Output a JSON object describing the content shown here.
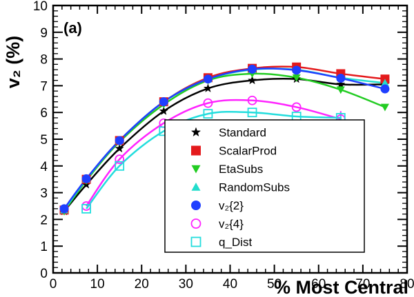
{
  "chart_data": {
    "type": "scatter",
    "panel_label": "(a)",
    "xlabel": "% Most Central",
    "ylabel": "v₂ (%)",
    "xlim": [
      0,
      80
    ],
    "ylim": [
      0,
      10
    ],
    "x_ticks": [
      0,
      10,
      20,
      30,
      40,
      50,
      60,
      70,
      80
    ],
    "y_ticks": [
      0,
      1,
      2,
      3,
      4,
      5,
      6,
      7,
      8,
      9,
      10
    ],
    "grid": false,
    "legend_position": "lower-right",
    "series": [
      {
        "name": "Standard",
        "marker": "star",
        "color": "#000000",
        "fill": "#000000",
        "x": [
          2.5,
          7.5,
          15,
          25,
          35,
          45,
          55,
          65,
          75
        ],
        "y": [
          2.3,
          3.3,
          4.65,
          6.05,
          6.9,
          7.2,
          7.25,
          7.05,
          7.05
        ],
        "yerr": [
          0,
          0,
          0,
          0,
          0,
          0,
          0,
          0,
          0
        ]
      },
      {
        "name": "ScalarProd",
        "marker": "square",
        "color": "#e41a1c",
        "fill": "#e41a1c",
        "x": [
          2.5,
          7.5,
          15,
          25,
          35,
          45,
          55,
          65,
          75
        ],
        "y": [
          2.35,
          3.5,
          4.95,
          6.4,
          7.3,
          7.65,
          7.7,
          7.45,
          7.25
        ],
        "yerr": [
          0,
          0,
          0,
          0,
          0,
          0,
          0,
          0,
          0
        ]
      },
      {
        "name": "EtaSubs",
        "marker": "triangle-down",
        "color": "#22cc22",
        "fill": "#22cc22",
        "x": [
          2.5,
          7.5,
          15,
          25,
          35,
          45,
          55,
          65,
          75
        ],
        "y": [
          2.3,
          3.45,
          4.9,
          6.3,
          7.2,
          7.45,
          7.3,
          6.85,
          6.2
        ],
        "yerr": [
          0,
          0,
          0,
          0,
          0,
          0,
          0,
          0,
          0
        ]
      },
      {
        "name": "RandomSubs",
        "marker": "triangle-up",
        "color": "#22ddcc",
        "fill": "#22ddcc",
        "x": [
          2.5,
          7.5,
          15,
          25,
          35,
          45,
          55,
          65,
          75
        ],
        "y": [
          2.35,
          3.5,
          4.95,
          6.4,
          7.25,
          7.6,
          7.6,
          7.3,
          7.1
        ],
        "yerr": [
          0,
          0,
          0,
          0,
          0,
          0,
          0,
          0,
          0
        ]
      },
      {
        "name": "v₂{2}",
        "marker": "circle",
        "color": "#1f3fff",
        "fill": "#1f3fff",
        "x": [
          2.5,
          7.5,
          15,
          25,
          35,
          45,
          55,
          65,
          75
        ],
        "y": [
          2.4,
          3.52,
          4.95,
          6.4,
          7.25,
          7.62,
          7.58,
          7.28,
          6.88
        ],
        "yerr": [
          0,
          0,
          0,
          0,
          0,
          0,
          0,
          0,
          0.1
        ]
      },
      {
        "name": "v₂{4}",
        "marker": "circle-open",
        "color": "#ff22ff",
        "fill": "none",
        "x": [
          7.5,
          15,
          25,
          35,
          45,
          55,
          65
        ],
        "y": [
          2.5,
          4.25,
          5.6,
          6.35,
          6.45,
          6.2,
          5.75
        ],
        "yerr": [
          0,
          0,
          0,
          0,
          0,
          0,
          0.3
        ]
      },
      {
        "name": "q_Dist",
        "marker": "square-open",
        "color": "#22dddd",
        "fill": "none",
        "x": [
          7.5,
          15,
          25,
          35,
          45,
          55,
          65
        ],
        "y": [
          2.4,
          4.0,
          5.3,
          5.95,
          6.0,
          5.85,
          5.8
        ],
        "yerr": [
          0,
          0,
          0,
          0,
          0,
          0,
          0.2
        ]
      }
    ],
    "fit_curves": [
      {
        "color": "#000000",
        "x": [
          2.5,
          7.5,
          15,
          25,
          35,
          45,
          55,
          65,
          75
        ],
        "y": [
          2.3,
          3.3,
          4.65,
          6.05,
          6.9,
          7.2,
          7.25,
          7.05,
          7.05
        ]
      },
      {
        "color": "#e41a1c",
        "x": [
          2.5,
          7.5,
          15,
          25,
          35,
          45,
          55,
          65,
          75
        ],
        "y": [
          2.35,
          3.5,
          4.95,
          6.4,
          7.3,
          7.65,
          7.7,
          7.45,
          7.25
        ]
      },
      {
        "color": "#22cc22",
        "x": [
          2.5,
          7.5,
          15,
          25,
          35,
          45,
          55,
          65,
          75
        ],
        "y": [
          2.3,
          3.45,
          4.9,
          6.3,
          7.2,
          7.45,
          7.3,
          6.85,
          6.2
        ]
      },
      {
        "color": "#22ddcc",
        "x": [
          2.5,
          7.5,
          15,
          25,
          35,
          45,
          55,
          65,
          75
        ],
        "y": [
          2.35,
          3.5,
          4.95,
          6.4,
          7.25,
          7.6,
          7.6,
          7.3,
          7.1
        ]
      },
      {
        "color": "#1f3fff",
        "x": [
          2.5,
          7.5,
          15,
          25,
          35,
          45,
          55,
          65,
          75
        ],
        "y": [
          2.4,
          3.52,
          4.95,
          6.4,
          7.25,
          7.62,
          7.58,
          7.28,
          6.88
        ]
      },
      {
        "color": "#ff22ff",
        "x": [
          7.5,
          15,
          25,
          35,
          45,
          55,
          65
        ],
        "y": [
          2.5,
          4.25,
          5.6,
          6.35,
          6.45,
          6.2,
          5.75
        ]
      },
      {
        "color": "#22dddd",
        "x": [
          7.5,
          15,
          25,
          35,
          45,
          55,
          65
        ],
        "y": [
          2.4,
          4.0,
          5.3,
          5.95,
          6.0,
          5.85,
          5.8
        ]
      }
    ]
  }
}
